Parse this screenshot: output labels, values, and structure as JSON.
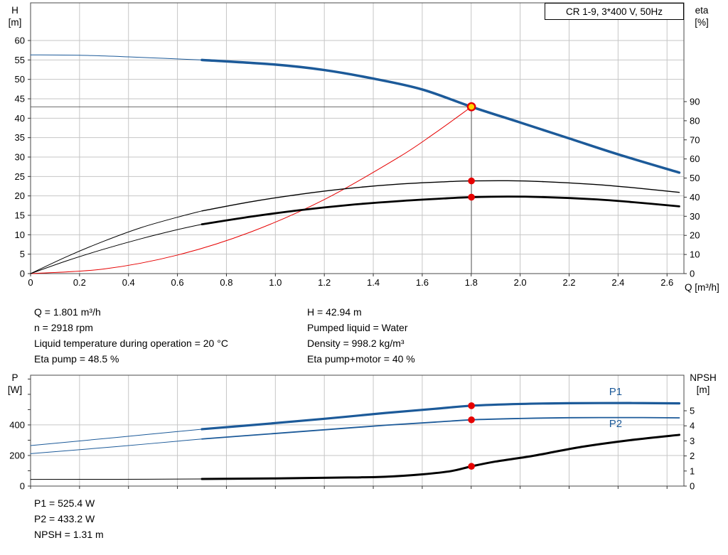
{
  "legend": "CR 1-9, 3*400 V, 50Hz",
  "axis_titles": {
    "h": "H\n[m]",
    "eta": "eta\n[%]",
    "q": "Q [m³/h]",
    "p": "P\n[W]",
    "npsh": "NPSH\n[m]"
  },
  "info_top": {
    "left": [
      "Q = 1.801 m³/h",
      "n = 2918 rpm",
      "Liquid temperature during operation = 20 °C",
      "Eta pump = 48.5 %"
    ],
    "right": [
      "H = 42.94 m",
      "Pumped liquid = Water",
      "Density = 998.2 kg/m³",
      "Eta pump+motor = 40 %"
    ]
  },
  "info_bottom": [
    "P1 = 525.4 W",
    "P2 = 433.2 W",
    "NPSH = 1.31 m"
  ],
  "operating_point": {
    "q_m3h": 1.801,
    "h_m": 42.94,
    "n_rpm": 2918,
    "eta_pump_pct": 48.5,
    "eta_pump_motor_pct": 40,
    "p1_w": 525.4,
    "p2_w": 433.2,
    "npsh_m": 1.31,
    "pumped_liquid": "Water",
    "density_kg_m3": 998.2,
    "liquid_temperature_c": 20
  },
  "colors": {
    "blue": "#1c5a99",
    "black": "#000000",
    "red": "#e60000",
    "duty_yellow": "#ffd500",
    "grid": "#c6c6c6",
    "border": "#4a4a4a",
    "tick": "#333333",
    "ref_line": "#555555"
  },
  "chart_data": [
    {
      "id": "qh",
      "type": "line",
      "title": "CR 1-9, 3*400 V, 50Hz",
      "x_axis": {
        "label": "Q [m³/h]",
        "min": 0,
        "max": 2.669,
        "ticks": [
          0,
          0.2,
          0.4,
          0.6,
          0.8,
          1.0,
          1.2,
          1.4,
          1.6,
          1.8,
          2.0,
          2.2,
          2.4,
          2.6
        ],
        "tick_labels": [
          "0",
          "0.2",
          "0.4",
          "0.6",
          "0.8",
          "1.0",
          "1.2",
          "1.4",
          "1.6",
          "1.8",
          "2.0",
          "2.2",
          "2.4",
          "2.6"
        ]
      },
      "y_left": {
        "label": "H [m]",
        "min": 0,
        "max": 69.7,
        "ticks": [
          0,
          5,
          10,
          15,
          20,
          25,
          30,
          35,
          40,
          45,
          50,
          55,
          60
        ],
        "tick_labels": [
          "0",
          "5",
          "10",
          "15",
          "20",
          "25",
          "30",
          "35",
          "40",
          "45",
          "50",
          "55",
          "60"
        ],
        "grid_ticks": [
          5,
          10,
          15,
          20,
          25,
          30,
          35,
          40,
          45,
          50,
          55,
          60
        ]
      },
      "y_right": {
        "label": "eta [%]",
        "min": 0,
        "max": 141.7,
        "ticks": [
          0,
          10,
          20,
          30,
          40,
          50,
          60,
          70,
          80,
          90
        ],
        "tick_labels": [
          "0",
          "10",
          "20",
          "30",
          "40",
          "50",
          "60",
          "70",
          "80",
          "90"
        ]
      },
      "series": [
        {
          "name": "system-curve",
          "axis": "left",
          "color": "red",
          "width": 1,
          "points": [
            [
              0,
              0
            ],
            [
              0.3,
              1.19
            ],
            [
              0.6,
              4.77
            ],
            [
              0.9,
              10.73
            ],
            [
              1.2,
              19.07
            ],
            [
              1.5,
              29.8
            ],
            [
              1.65,
              36.1
            ],
            [
              1.801,
              42.94
            ]
          ]
        },
        {
          "name": "eta-pump-low-flow",
          "axis": "right",
          "color": "black",
          "width": 1,
          "points": [
            [
              0,
              0
            ],
            [
              0.15,
              9
            ],
            [
              0.3,
              17
            ],
            [
              0.45,
              24
            ],
            [
              0.6,
              29.5
            ],
            [
              0.7,
              32.8
            ]
          ]
        },
        {
          "name": "eta-pump",
          "axis": "right",
          "color": "black",
          "width": 1.4,
          "points": [
            [
              0.7,
              32.8
            ],
            [
              0.9,
              37.6
            ],
            [
              1.1,
              41.5
            ],
            [
              1.3,
              44.6
            ],
            [
              1.5,
              46.8
            ],
            [
              1.7,
              48.1
            ],
            [
              1.801,
              48.5
            ],
            [
              1.95,
              48.6
            ],
            [
              2.1,
              48.1
            ],
            [
              2.3,
              46.7
            ],
            [
              2.45,
              45.1
            ],
            [
              2.65,
              42.5
            ]
          ]
        },
        {
          "name": "eta-pump-motor-low-flow",
          "axis": "right",
          "color": "black",
          "width": 1,
          "points": [
            [
              0,
              0
            ],
            [
              0.15,
              6.8
            ],
            [
              0.3,
              12.8
            ],
            [
              0.45,
              18.2
            ],
            [
              0.6,
              23.0
            ],
            [
              0.7,
              25.8
            ]
          ]
        },
        {
          "name": "eta-pump-motor",
          "axis": "right",
          "color": "black",
          "width": 2.8,
          "points": [
            [
              0.7,
              25.8
            ],
            [
              0.9,
              29.8
            ],
            [
              1.1,
              33.2
            ],
            [
              1.3,
              35.9
            ],
            [
              1.5,
              37.9
            ],
            [
              1.7,
              39.4
            ],
            [
              1.801,
              40.0
            ],
            [
              1.95,
              40.3
            ],
            [
              2.1,
              40.0
            ],
            [
              2.3,
              38.9
            ],
            [
              2.45,
              37.5
            ],
            [
              2.65,
              35.2
            ]
          ]
        },
        {
          "name": "qh-curve-low-flow",
          "axis": "left",
          "color": "blue",
          "width": 1,
          "points": [
            [
              0,
              56.3
            ],
            [
              0.2,
              56.2
            ],
            [
              0.4,
              55.8
            ],
            [
              0.55,
              55.4
            ],
            [
              0.7,
              55.0
            ]
          ]
        },
        {
          "name": "qh-curve",
          "axis": "left",
          "color": "blue",
          "width": 3.5,
          "points": [
            [
              0.7,
              55.0
            ],
            [
              1.0,
              53.8
            ],
            [
              1.2,
              52.4
            ],
            [
              1.4,
              50.2
            ],
            [
              1.6,
              47.4
            ],
            [
              1.801,
              42.94
            ],
            [
              2.0,
              38.9
            ],
            [
              2.2,
              34.8
            ],
            [
              2.4,
              30.7
            ],
            [
              2.65,
              26.0
            ]
          ]
        }
      ],
      "lines": [
        {
          "q1": 0,
          "v1": 42.94,
          "q2": 1.801,
          "v2": 42.94,
          "axis": "left"
        },
        {
          "q1": 1.801,
          "v1": 0,
          "q2": 1.801,
          "v2": 42.94,
          "axis": "left"
        }
      ],
      "markers": [
        {
          "q": 1.801,
          "v": 48.5,
          "axis": "right",
          "kind": "dot"
        },
        {
          "q": 1.801,
          "v": 40.0,
          "axis": "right",
          "kind": "dot"
        },
        {
          "q": 1.801,
          "v": 42.94,
          "axis": "left",
          "kind": "duty"
        }
      ]
    },
    {
      "id": "power",
      "type": "line",
      "x_axis": {
        "label": "",
        "min": 0,
        "max": 2.669,
        "ticks": [
          0,
          0.2,
          0.4,
          0.6,
          0.8,
          1.0,
          1.2,
          1.4,
          1.6,
          1.8,
          2.0,
          2.2,
          2.4,
          2.6
        ],
        "tick_labels": []
      },
      "y_left": {
        "label": "P [W]",
        "min": 0,
        "max": 725,
        "ticks": [
          0,
          100,
          200,
          300,
          400,
          500,
          600,
          700
        ],
        "tick_labels": [
          "0",
          "",
          "200",
          "",
          "400",
          "",
          "",
          ""
        ],
        "grid_ticks": [
          200,
          400
        ]
      },
      "y_right": {
        "label": "NPSH [m]",
        "min": 0,
        "max": 7.36,
        "ticks": [
          0,
          1,
          2,
          3,
          4,
          5
        ],
        "tick_labels": [
          "0",
          "1",
          "2",
          "3",
          "4",
          "5"
        ]
      },
      "series": [
        {
          "name": "p2-low-flow",
          "axis": "left",
          "color": "blue",
          "width": 1,
          "points": [
            [
              0,
              212
            ],
            [
              0.35,
              258
            ],
            [
              0.7,
              308
            ]
          ]
        },
        {
          "name": "p1-low-flow",
          "axis": "left",
          "color": "blue",
          "width": 1,
          "points": [
            [
              0,
              265
            ],
            [
              0.35,
              318
            ],
            [
              0.7,
              372
            ]
          ]
        },
        {
          "name": "p2-curve",
          "axis": "left",
          "color": "blue",
          "width": 1.8,
          "points": [
            [
              0.7,
              308
            ],
            [
              0.95,
              338
            ],
            [
              1.2,
              368
            ],
            [
              1.45,
              398
            ],
            [
              1.65,
              418
            ],
            [
              1.801,
              433.2
            ],
            [
              2.0,
              442
            ],
            [
              2.2,
              447
            ],
            [
              2.45,
              448
            ],
            [
              2.65,
              446
            ]
          ]
        },
        {
          "name": "p1-curve",
          "axis": "left",
          "color": "blue",
          "width": 3.2,
          "points": [
            [
              0.7,
              372
            ],
            [
              0.95,
              405
            ],
            [
              1.2,
              440
            ],
            [
              1.45,
              478
            ],
            [
              1.65,
              505
            ],
            [
              1.801,
              525.4
            ],
            [
              2.0,
              537
            ],
            [
              2.2,
              542
            ],
            [
              2.45,
              543
            ],
            [
              2.65,
              541
            ]
          ]
        },
        {
          "name": "npsh-low-flow",
          "axis": "right",
          "color": "black",
          "width": 1,
          "points": [
            [
              0,
              0.44
            ],
            [
              0.35,
              0.45
            ],
            [
              0.7,
              0.47
            ]
          ]
        },
        {
          "name": "npsh-curve",
          "axis": "right",
          "color": "black",
          "width": 3,
          "points": [
            [
              0.7,
              0.47
            ],
            [
              1.0,
              0.51
            ],
            [
              1.3,
              0.57
            ],
            [
              1.45,
              0.62
            ],
            [
              1.6,
              0.78
            ],
            [
              1.72,
              1.0
            ],
            [
              1.801,
              1.31
            ],
            [
              1.9,
              1.63
            ],
            [
              2.05,
              2.0
            ],
            [
              2.25,
              2.6
            ],
            [
              2.45,
              3.05
            ],
            [
              2.65,
              3.4
            ]
          ]
        }
      ],
      "markers": [
        {
          "q": 1.801,
          "v": 525.4,
          "axis": "left",
          "kind": "dot"
        },
        {
          "q": 1.801,
          "v": 433.2,
          "axis": "left",
          "kind": "dot"
        },
        {
          "q": 1.801,
          "v": 1.31,
          "axis": "right",
          "kind": "dot"
        }
      ],
      "annotations": [
        {
          "text": "P1",
          "q": 2.39,
          "v": 595,
          "axis": "left",
          "color": "blue"
        },
        {
          "text": "P2",
          "q": 2.39,
          "v": 386,
          "axis": "left",
          "color": "blue"
        }
      ]
    }
  ]
}
